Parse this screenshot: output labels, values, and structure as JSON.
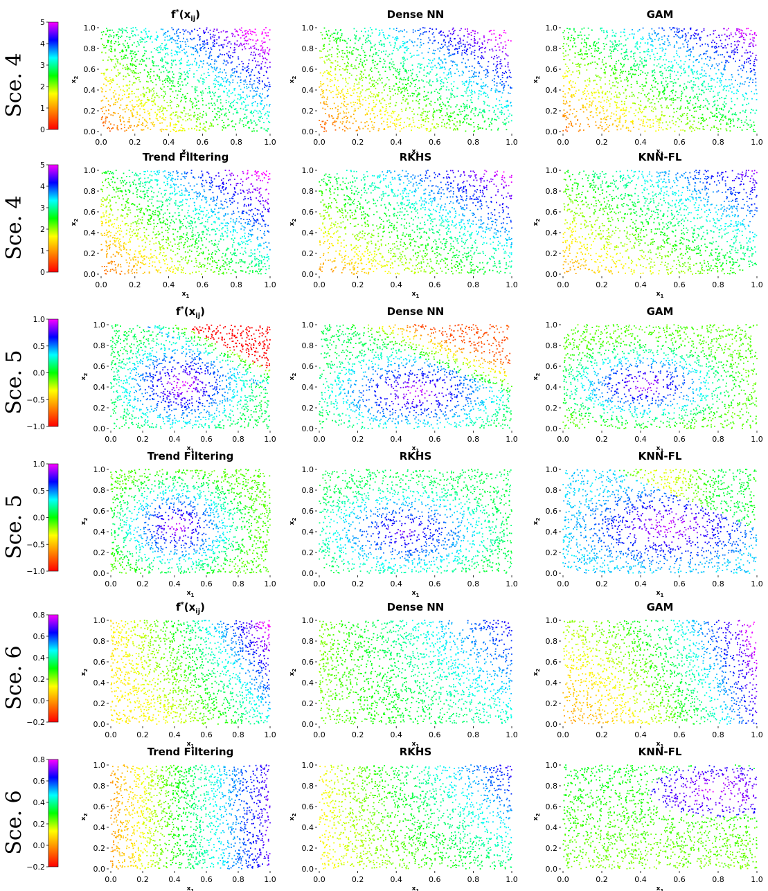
{
  "figure": {
    "background": "#ffffff"
  },
  "chart_data": [
    {
      "row": 0,
      "row_label": "Sce.  4",
      "colorbar": {
        "min": 0,
        "max": 5,
        "ticks": [
          "0",
          "1",
          "2",
          "3",
          "4",
          "5"
        ]
      },
      "panels": [
        {
          "type": "scatter",
          "title": "f*(x_ij)",
          "title_main": "f",
          "title_sup": "*",
          "title_tail": "(x",
          "title_sub": "ij",
          "title_end": ")",
          "field": "s4_true"
        },
        {
          "type": "scatter",
          "title": "Dense NN",
          "field": "s4_dnn"
        },
        {
          "type": "scatter",
          "title": "GAM",
          "field": "s4_gam"
        }
      ]
    },
    {
      "row": 1,
      "row_label": "Sce.  4",
      "colorbar": {
        "min": 0,
        "max": 5,
        "ticks": [
          "0",
          "1",
          "2",
          "3",
          "4",
          "5"
        ]
      },
      "panels": [
        {
          "type": "scatter",
          "title": "Trend Filtering",
          "field": "s4_tf"
        },
        {
          "type": "scatter",
          "title": "RKHS",
          "field": "s4_rkhs"
        },
        {
          "type": "scatter",
          "title": "KNN-FL",
          "field": "s4_knn"
        }
      ]
    },
    {
      "row": 2,
      "row_label": "Sce.  5",
      "colorbar": {
        "min": -1,
        "max": 1,
        "ticks": [
          "−1.0",
          "−0.5",
          "0.0",
          "0.5",
          "1.0"
        ]
      },
      "panels": [
        {
          "type": "scatter",
          "title": "f*(x_ij)",
          "title_main": "f",
          "title_sup": "*",
          "title_tail": "(x",
          "title_sub": "ij",
          "title_end": ")",
          "field": "s5_true"
        },
        {
          "type": "scatter",
          "title": "Dense NN",
          "field": "s5_dnn"
        },
        {
          "type": "scatter",
          "title": "GAM",
          "field": "s5_gam"
        }
      ]
    },
    {
      "row": 3,
      "row_label": "Sce.  5",
      "colorbar": {
        "min": -1,
        "max": 1,
        "ticks": [
          "−1.0",
          "−0.5",
          "0.0",
          "0.5",
          "1.0"
        ]
      },
      "panels": [
        {
          "type": "scatter",
          "title": "Trend Filtering",
          "field": "s5_tf"
        },
        {
          "type": "scatter",
          "title": "RKHS",
          "field": "s5_rkhs"
        },
        {
          "type": "scatter",
          "title": "KNN-FL",
          "field": "s5_knn"
        }
      ]
    },
    {
      "row": 4,
      "row_label": "Sce.  6",
      "colorbar": {
        "min": -0.2,
        "max": 0.8,
        "ticks": [
          "−0.2",
          "0.0",
          "0.2",
          "0.4",
          "0.6",
          "0.8"
        ]
      },
      "panels": [
        {
          "type": "scatter",
          "title": "f*(x_ij)",
          "title_main": "f",
          "title_sup": "*",
          "title_tail": "(x",
          "title_sub": "ij",
          "title_end": ")",
          "field": "s6_true"
        },
        {
          "type": "scatter",
          "title": "Dense NN",
          "field": "s6_dnn"
        },
        {
          "type": "scatter",
          "title": "GAM",
          "field": "s6_gam"
        }
      ]
    },
    {
      "row": 5,
      "row_label": "Sce.  6",
      "colorbar": {
        "min": -0.2,
        "max": 0.8,
        "ticks": [
          "−0.2",
          "0.0",
          "0.2",
          "0.4",
          "0.6",
          "0.8"
        ]
      },
      "panels": [
        {
          "type": "scatter",
          "title": "Trend Filtering",
          "field": "s6_tf"
        },
        {
          "type": "scatter",
          "title": "RKHS",
          "field": "s6_rkhs"
        },
        {
          "type": "scatter",
          "title": "KNN-FL",
          "field": "s6_knn"
        }
      ]
    }
  ],
  "axes": {
    "xlim": [
      0,
      1
    ],
    "ylim": [
      0,
      1
    ],
    "xticks": [
      "0.0",
      "0.2",
      "0.4",
      "0.6",
      "0.8",
      "1.0"
    ],
    "yticks": [
      "0.0",
      "0.2",
      "0.4",
      "0.6",
      "0.8",
      "1.0"
    ],
    "xlabel_main": "x",
    "xlabel_sub": "1",
    "ylabel_main": "x",
    "ylabel_sub": "2"
  },
  "colormap": "gist_rainbow",
  "colormap_stops": [
    "#ff0000",
    "#ff8000",
    "#ffff00",
    "#00ff00",
    "#00ffff",
    "#0000ff",
    "#ff00ff"
  ]
}
